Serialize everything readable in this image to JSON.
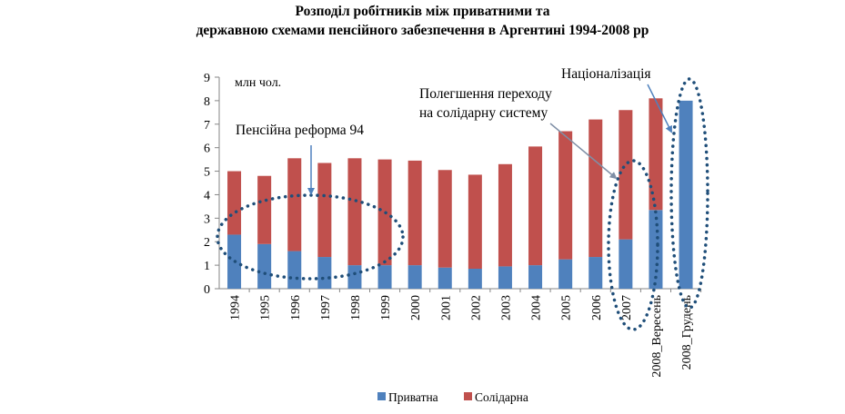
{
  "chart_data": {
    "type": "bar",
    "stacked": true,
    "title_lines": [
      "Розподіл робітників між приватними та",
      "державною схемами пенсійного забезпечення в Аргентині 1994-2008 рр"
    ],
    "ylabel": "млн чол.",
    "ylim": [
      0,
      9
    ],
    "yticks": [
      0,
      1,
      2,
      3,
      4,
      5,
      6,
      7,
      8,
      9
    ],
    "grid": false,
    "legend_position": "bottom",
    "categories": [
      "1994",
      "1995",
      "1996",
      "1997",
      "1998",
      "1999",
      "2000",
      "2001",
      "2002",
      "2003",
      "2004",
      "2005",
      "2006",
      "2007",
      "2008_Вересень",
      "2008_Грудень"
    ],
    "series": [
      {
        "name": "Приватна",
        "color": "#4f81bd",
        "values": [
          2.3,
          1.9,
          1.6,
          1.35,
          1.0,
          1.0,
          1.0,
          0.9,
          0.85,
          0.95,
          1.0,
          1.25,
          1.35,
          2.1,
          3.35,
          8.0
        ]
      },
      {
        "name": "Солідарна",
        "color": "#c0504d",
        "values": [
          2.7,
          2.9,
          3.95,
          4.0,
          4.55,
          4.5,
          4.45,
          4.15,
          4.0,
          4.35,
          5.05,
          5.45,
          5.85,
          5.5,
          4.75,
          0
        ]
      }
    ],
    "annotations": [
      "Пенсійна реформа 94",
      "Полегшення переходу на солідарну систему",
      "Націоналізація"
    ]
  }
}
